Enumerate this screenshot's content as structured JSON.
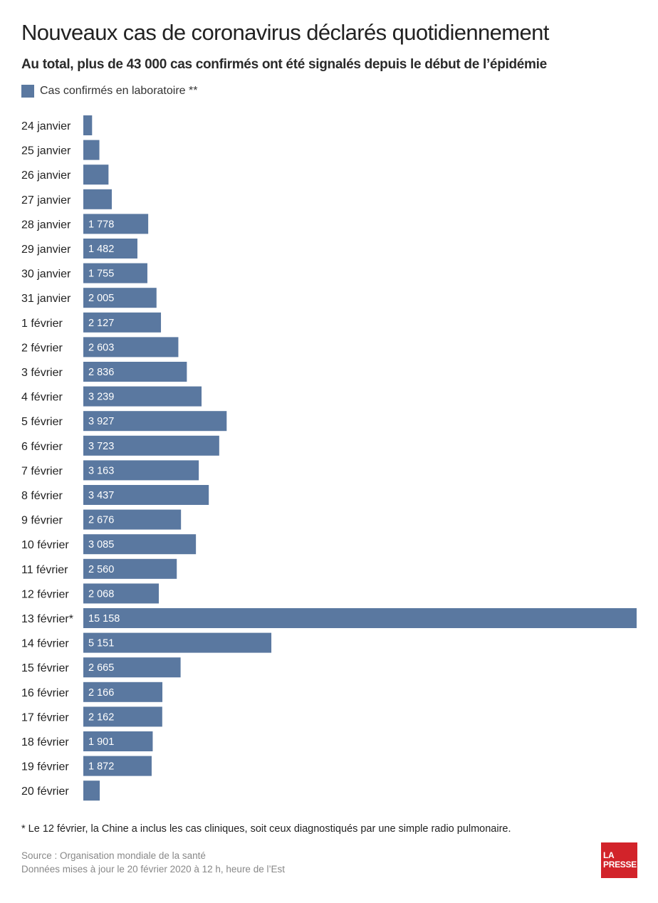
{
  "header": {
    "title": "Nouveaux cas de coronavirus déclarés quotidiennement",
    "subtitle": "Au total, plus de 43 000 cas confirmés ont été signalés depuis le début de l’épidémie"
  },
  "legend": {
    "label": "Cas confirmés en laboratoire **",
    "color": "#5a78a0"
  },
  "chart_data": {
    "type": "bar",
    "orientation": "horizontal",
    "categories": [
      "24 janvier",
      "25 janvier",
      "26 janvier",
      "27 janvier",
      "28 janvier",
      "29 janvier",
      "30 janvier",
      "31 janvier",
      "1 février",
      "2 février",
      "3 février",
      "4 février",
      "5 février",
      "6 février",
      "7 février",
      "8 février",
      "9 février",
      "10 février",
      "11 février",
      "12 février",
      "13 février*",
      "14 février",
      "15 février",
      "16 février",
      "17 février",
      "18 février",
      "19 février",
      "20 février"
    ],
    "values": [
      240,
      440,
      690,
      780,
      1778,
      1482,
      1755,
      2005,
      2127,
      2603,
      2836,
      3239,
      3927,
      3723,
      3163,
      3437,
      2676,
      3085,
      2560,
      2068,
      15158,
      5151,
      2665,
      2166,
      2162,
      1901,
      1872,
      450
    ],
    "labels": [
      "",
      "",
      "",
      "",
      "1 778",
      "1 482",
      "1 755",
      "2 005",
      "2 127",
      "2 603",
      "2 836",
      "3 239",
      "3 927",
      "3 723",
      "3 163",
      "3 437",
      "2 676",
      "3 085",
      "2 560",
      "2 068",
      "15 158",
      "5 151",
      "2 665",
      "2 166",
      "2 162",
      "1 901",
      "1 872",
      ""
    ],
    "series": [
      {
        "name": "Cas confirmés en laboratoire **",
        "color": "#5a78a0"
      }
    ],
    "xlim": [
      0,
      15158
    ],
    "grid": false
  },
  "footer": {
    "footnote": "*  Le 12 février, la Chine a inclus les cas cliniques, soit ceux diagnostiqués par une simple radio pulmonaire.",
    "source": "Source : Organisation mondiale de la santé",
    "updated": "Données mises à jour le 20 février 2020 à 12 h, heure de l’Est",
    "logo_line1": "LA",
    "logo_line2": "PRESSE",
    "logo_color": "#d2232a"
  }
}
